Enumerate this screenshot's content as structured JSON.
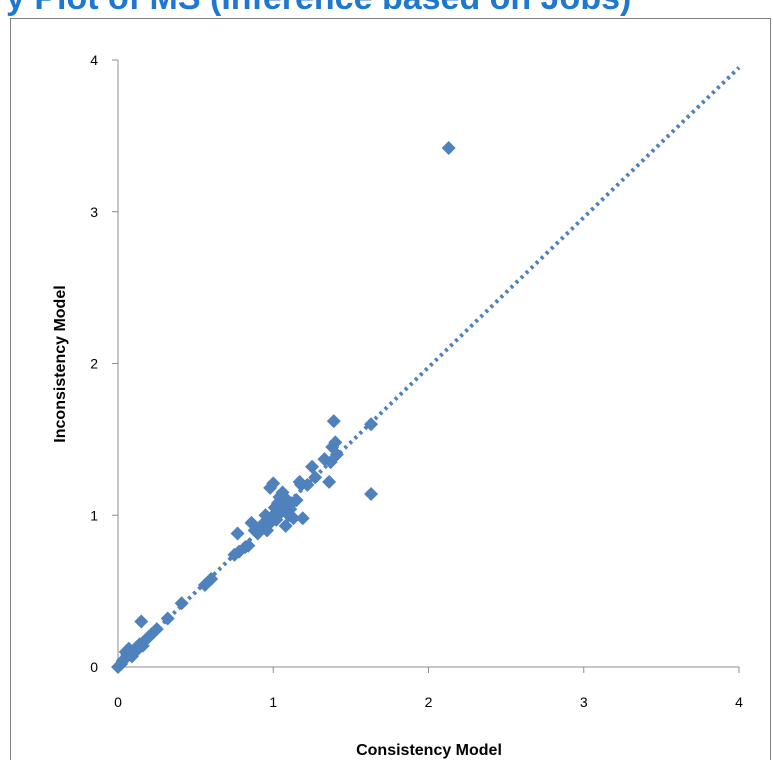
{
  "title_visible_fragment": "y Plot of MS (Inference based on Jobs)",
  "colors": {
    "title": "#1f77d0",
    "marker": "#4f81bd",
    "trendline": "#4f81bd",
    "axis": "#8c8c8c"
  },
  "chart_data": {
    "type": "scatter",
    "title": "y Plot of MS (Inference based on Jobs)",
    "xlabel": "Consistency Model",
    "ylabel": "Inconsistency Model",
    "xlim": [
      0,
      4
    ],
    "ylim": [
      0,
      4
    ],
    "xticks": [
      "0",
      "1",
      "2",
      "3",
      "4"
    ],
    "yticks": [
      "0",
      "1",
      "2",
      "3",
      "4"
    ],
    "grid": false,
    "legend": "none",
    "marker": "diamond",
    "trendline": {
      "style": "dotted",
      "x": [
        0,
        4
      ],
      "y": [
        0,
        3.95
      ]
    },
    "points": [
      [
        0.0,
        0.0
      ],
      [
        0.02,
        0.02
      ],
      [
        0.03,
        0.04
      ],
      [
        0.04,
        0.05
      ],
      [
        0.05,
        0.06
      ],
      [
        0.05,
        0.1
      ],
      [
        0.06,
        0.08
      ],
      [
        0.07,
        0.12
      ],
      [
        0.08,
        0.1
      ],
      [
        0.09,
        0.07
      ],
      [
        0.1,
        0.09
      ],
      [
        0.11,
        0.11
      ],
      [
        0.12,
        0.13
      ],
      [
        0.13,
        0.12
      ],
      [
        0.14,
        0.15
      ],
      [
        0.15,
        0.3
      ],
      [
        0.16,
        0.14
      ],
      [
        0.18,
        0.18
      ],
      [
        0.2,
        0.2
      ],
      [
        0.22,
        0.22
      ],
      [
        0.25,
        0.25
      ],
      [
        0.32,
        0.32
      ],
      [
        0.41,
        0.42
      ],
      [
        0.56,
        0.54
      ],
      [
        0.6,
        0.58
      ],
      [
        0.75,
        0.74
      ],
      [
        0.78,
        0.76
      ],
      [
        0.77,
        0.88
      ],
      [
        0.82,
        0.79
      ],
      [
        0.84,
        0.8
      ],
      [
        0.86,
        0.95
      ],
      [
        0.88,
        0.9
      ],
      [
        0.9,
        0.88
      ],
      [
        0.92,
        0.92
      ],
      [
        0.94,
        0.95
      ],
      [
        0.95,
        1.0
      ],
      [
        0.96,
        0.9
      ],
      [
        0.98,
        1.18
      ],
      [
        0.99,
        0.96
      ],
      [
        1.0,
        1.0
      ],
      [
        1.0,
        1.21
      ],
      [
        1.01,
        1.05
      ],
      [
        1.02,
        0.97
      ],
      [
        1.03,
        1.08
      ],
      [
        1.04,
        1.12
      ],
      [
        1.05,
        1.02
      ],
      [
        1.06,
        1.15
      ],
      [
        1.07,
        1.06
      ],
      [
        1.08,
        0.93
      ],
      [
        1.09,
        1.1
      ],
      [
        1.1,
        1.0
      ],
      [
        1.11,
        1.04
      ],
      [
        1.12,
        1.08
      ],
      [
        1.13,
        0.98
      ],
      [
        1.15,
        1.1
      ],
      [
        1.17,
        1.22
      ],
      [
        1.18,
        1.2
      ],
      [
        1.19,
        0.98
      ],
      [
        1.22,
        1.2
      ],
      [
        1.25,
        1.32
      ],
      [
        1.27,
        1.25
      ],
      [
        1.33,
        1.37
      ],
      [
        1.36,
        1.22
      ],
      [
        1.37,
        1.35
      ],
      [
        1.38,
        1.45
      ],
      [
        1.39,
        1.62
      ],
      [
        1.4,
        1.48
      ],
      [
        1.41,
        1.4
      ],
      [
        1.63,
        1.6
      ],
      [
        1.63,
        1.14
      ],
      [
        2.13,
        3.42
      ]
    ]
  }
}
